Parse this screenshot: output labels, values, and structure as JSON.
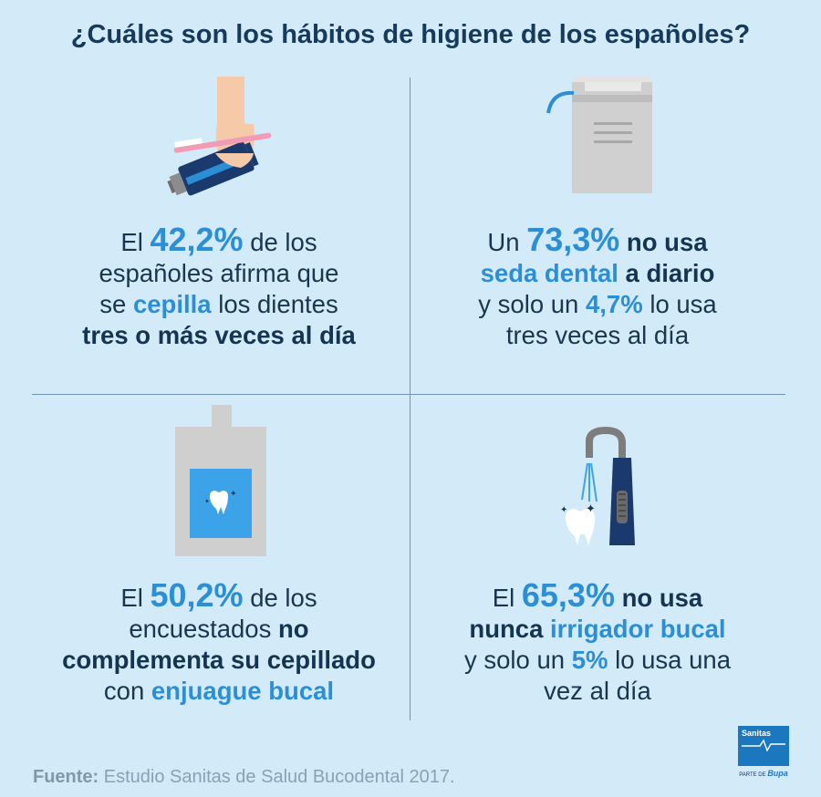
{
  "title": "¿Cuáles son los hábitos de higiene de los españoles?",
  "sections": {
    "brush": {
      "p1": "El ",
      "v1": "42,2%",
      "p2": " de los",
      "l2": "españoles afirma que",
      "l3a": "se ",
      "l3b": "cepilla",
      "l3c": " los dientes",
      "l4": "tres o más veces al día"
    },
    "floss": {
      "p1": "Un ",
      "v1": "73,3%",
      "p2": " no usa",
      "l2a": "seda dental",
      "l2b": " a diario",
      "l3a": "y solo un ",
      "l3b": "4,7%",
      "l3c": " lo usa",
      "l4": "tres veces al día"
    },
    "mouthwash": {
      "p1": "El ",
      "v1": "50,2%",
      "p2": " de los",
      "l2a": "encuestados ",
      "l2b": "no",
      "l3": "complementa su cepillado",
      "l4a": "con ",
      "l4b": "enjuague bucal"
    },
    "irrigator": {
      "p1": "El ",
      "v1": "65,3%",
      "p2": " no usa",
      "l2a": "nunca ",
      "l2b": "irrigador bucal",
      "l3a": "y solo un ",
      "l3b": "5%",
      "l3c": " lo usa una",
      "l4": "vez al día"
    }
  },
  "footer": {
    "label": "Fuente:",
    "text": " Estudio Sanitas de Salud Bucodental 2017."
  },
  "logo": {
    "name": "Sanitas",
    "sub": "PARTE DE",
    "parent": "Bupa"
  },
  "icons": [
    "hand-toothbrush-toothpaste-icon",
    "dental-floss-icon",
    "mouthwash-bottle-icon",
    "oral-irrigator-icon",
    "tooth-icon"
  ],
  "colors": {
    "background": "#d3ebf8",
    "navy": "#163a5c",
    "accent": "#2c8fd6"
  }
}
